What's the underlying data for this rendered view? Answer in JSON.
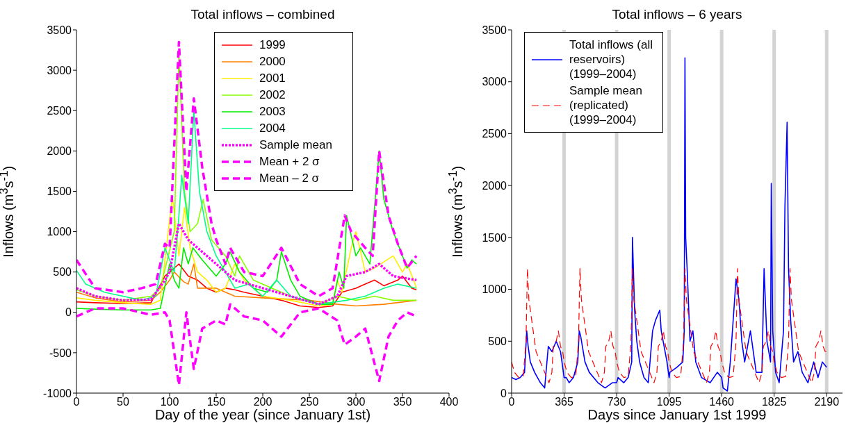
{
  "chart_data": [
    {
      "type": "line",
      "title": "Total inflows – combined",
      "xlabel": "Day of the year (since January 1st)",
      "ylabel": "Inflows (m$^{3}$s$^{-1}$)",
      "xlim": [
        0,
        400
      ],
      "xticks": [
        0,
        50,
        100,
        150,
        200,
        250,
        300,
        350,
        400
      ],
      "ylim": [
        -1000,
        3500
      ],
      "yticks": [
        -1000,
        -500,
        0,
        500,
        1000,
        1500,
        2000,
        2500,
        3000,
        3500
      ],
      "legend": "top right",
      "series": [
        {
          "name": "1999",
          "color": "#ff0000",
          "line_style": "solid",
          "x": [
            0,
            20,
            50,
            80,
            95,
            105,
            110,
            120,
            130,
            140,
            150,
            160,
            170,
            180,
            200,
            220,
            240,
            260,
            275,
            285,
            300,
            310,
            320,
            330,
            345,
            350,
            360,
            365
          ],
          "values": [
            130,
            120,
            110,
            120,
            450,
            550,
            600,
            450,
            400,
            300,
            250,
            300,
            280,
            250,
            200,
            150,
            80,
            60,
            80,
            250,
            300,
            350,
            400,
            330,
            400,
            450,
            300,
            280
          ]
        },
        {
          "name": "2000",
          "color": "#ff8000",
          "line_style": "solid",
          "x": [
            0,
            20,
            50,
            80,
            90,
            100,
            105,
            115,
            120,
            126,
            130,
            150,
            170,
            200,
            250,
            280,
            300,
            330,
            365
          ],
          "values": [
            250,
            180,
            130,
            150,
            250,
            400,
            500,
            380,
            350,
            600,
            300,
            300,
            200,
            180,
            150,
            100,
            80,
            100,
            150
          ]
        },
        {
          "name": "2001",
          "color": "#ffee00",
          "line_style": "solid",
          "x": [
            0,
            20,
            50,
            80,
            90,
            103,
            110,
            116,
            122,
            130,
            140,
            150,
            160,
            170,
            180,
            200,
            230,
            260,
            275,
            280,
            285,
            295,
            300,
            310,
            320,
            340,
            350,
            355,
            362,
            365
          ],
          "values": [
            180,
            150,
            120,
            100,
            150,
            1450,
            700,
            1300,
            800,
            500,
            400,
            250,
            300,
            600,
            400,
            200,
            150,
            80,
            100,
            400,
            250,
            800,
            1000,
            500,
            550,
            700,
            500,
            600,
            400,
            300
          ]
        },
        {
          "name": "2002",
          "color": "#88ff00",
          "line_style": "solid",
          "x": [
            0,
            20,
            50,
            80,
            90,
            105,
            110,
            116,
            122,
            130,
            136,
            145,
            160,
            170,
            175,
            190,
            210,
            230,
            260,
            280,
            300,
            320,
            340,
            365
          ],
          "values": [
            280,
            200,
            150,
            200,
            300,
            1000,
            3200,
            1500,
            1000,
            1100,
            1400,
            900,
            700,
            450,
            700,
            400,
            300,
            200,
            100,
            200,
            150,
            200,
            150,
            150
          ]
        },
        {
          "name": "2003",
          "color": "#00ee00",
          "line_style": "solid",
          "x": [
            0,
            20,
            50,
            80,
            90,
            100,
            105,
            110,
            115,
            120,
            125,
            135,
            150,
            160,
            165,
            175,
            190,
            205,
            215,
            220,
            230,
            240,
            260,
            275,
            282,
            287,
            290,
            300,
            305,
            315,
            325,
            330,
            340,
            350,
            355,
            360,
            365
          ],
          "values": [
            50,
            40,
            30,
            30,
            50,
            600,
            400,
            300,
            800,
            600,
            800,
            650,
            450,
            600,
            750,
            500,
            300,
            250,
            400,
            750,
            400,
            200,
            100,
            100,
            500,
            300,
            1200,
            700,
            800,
            600,
            2000,
            1400,
            1000,
            700,
            550,
            650,
            600
          ]
        },
        {
          "name": "2004",
          "color": "#00ff88",
          "line_style": "solid",
          "x": [
            0,
            10,
            30,
            50,
            70,
            85,
            95,
            105,
            110,
            113,
            120,
            126,
            132,
            140,
            150,
            160,
            170,
            185,
            200,
            215,
            230,
            260,
            290,
            310,
            330,
            345,
            365
          ],
          "values": [
            520,
            350,
            250,
            200,
            150,
            200,
            800,
            500,
            1200,
            1700,
            1100,
            2500,
            1500,
            1000,
            700,
            500,
            300,
            350,
            200,
            400,
            200,
            100,
            150,
            200,
            300,
            350,
            300
          ]
        },
        {
          "name": "Sample mean",
          "color": "#ff00ff",
          "line_style": "dotted",
          "x": [
            0,
            20,
            50,
            80,
            95,
            100,
            110,
            120,
            130,
            150,
            170,
            200,
            230,
            260,
            280,
            290,
            310,
            325,
            340,
            365
          ],
          "values": [
            300,
            200,
            150,
            160,
            400,
            500,
            1100,
            900,
            800,
            600,
            400,
            300,
            200,
            100,
            200,
            450,
            500,
            600,
            450,
            400
          ]
        },
        {
          "name": "Mean + 2 σ",
          "color": "#ff00ff",
          "line_style": "dashed",
          "x": [
            0,
            20,
            50,
            70,
            85,
            95,
            100,
            110,
            118,
            126,
            135,
            145,
            150,
            160,
            165,
            180,
            200,
            220,
            240,
            260,
            275,
            288,
            295,
            310,
            318,
            325,
            335,
            345,
            355,
            365
          ],
          "values": [
            650,
            300,
            250,
            300,
            350,
            850,
            800,
            3350,
            1500,
            2650,
            1800,
            1100,
            900,
            600,
            800,
            500,
            450,
            800,
            350,
            200,
            300,
            1200,
            1000,
            800,
            700,
            2000,
            1200,
            850,
            550,
            700
          ]
        },
        {
          "name": "Mean – 2 σ",
          "color": "#ff00ff",
          "line_style": "dashed",
          "x": [
            0,
            20,
            50,
            80,
            95,
            100,
            110,
            118,
            126,
            135,
            150,
            160,
            165,
            180,
            200,
            220,
            240,
            260,
            280,
            288,
            300,
            310,
            325,
            335,
            345,
            355,
            365
          ],
          "values": [
            -50,
            50,
            50,
            -30,
            0,
            -100,
            -900,
            0,
            -700,
            -200,
            -100,
            -150,
            100,
            -50,
            -100,
            -300,
            0,
            50,
            -100,
            -400,
            -300,
            -200,
            -850,
            -300,
            -100,
            0,
            -50
          ]
        }
      ]
    },
    {
      "type": "line",
      "title": "Total inflows – 6 years",
      "xlabel": "Days since January 1st 1999",
      "ylabel": "Inflows (m$^{3}$s$^{-1}$)",
      "xlim": [
        0,
        2300
      ],
      "xticks": [
        0,
        365,
        730,
        1095,
        1460,
        1825,
        2190
      ],
      "ylim": [
        0,
        3500
      ],
      "yticks": [
        0,
        500,
        1000,
        1500,
        2000,
        2500,
        3000,
        3500
      ],
      "legend": "top left",
      "ref_lines": [
        {
          "axis": "x",
          "value": 365,
          "color": "#d3d3d3"
        },
        {
          "axis": "x",
          "value": 730,
          "color": "#d3d3d3"
        },
        {
          "axis": "x",
          "value": 1095,
          "color": "#d3d3d3"
        },
        {
          "axis": "x",
          "value": 1460,
          "color": "#d3d3d3"
        },
        {
          "axis": "x",
          "value": 1825,
          "color": "#d3d3d3"
        },
        {
          "axis": "x",
          "value": 2190,
          "color": "#d3d3d3"
        }
      ],
      "series": [
        {
          "name": "Total inflows (all reservoirs) (1999–2004)",
          "color": "#0000ff",
          "line_style": "solid",
          "x": [
            0,
            30,
            60,
            90,
            105,
            115,
            130,
            160,
            200,
            230,
            255,
            280,
            310,
            340,
            365,
            380,
            400,
            430,
            460,
            470,
            480,
            510,
            540,
            600,
            650,
            700,
            730,
            740,
            780,
            810,
            835,
            840,
            855,
            870,
            890,
            920,
            950,
            980,
            1000,
            1030,
            1040,
            1080,
            1095,
            1100,
            1150,
            1190,
            1200,
            1205,
            1210,
            1220,
            1240,
            1260,
            1280,
            1320,
            1380,
            1430,
            1460,
            1470,
            1500,
            1520,
            1560,
            1580,
            1600,
            1620,
            1660,
            1700,
            1740,
            1755,
            1775,
            1800,
            1805,
            1815,
            1825,
            1835,
            1860,
            1890,
            1900,
            1915,
            1925,
            1940,
            1960,
            1990,
            2020,
            2060,
            2100,
            2130,
            2160,
            2190
          ],
          "values": [
            150,
            130,
            150,
            200,
            600,
            450,
            300,
            200,
            100,
            50,
            450,
            400,
            500,
            400,
            150,
            150,
            100,
            150,
            300,
            600,
            550,
            300,
            200,
            100,
            50,
            100,
            100,
            150,
            100,
            150,
            300,
            1500,
            800,
            500,
            300,
            150,
            100,
            600,
            700,
            800,
            600,
            300,
            150,
            200,
            250,
            300,
            600,
            3230,
            1500,
            1200,
            500,
            600,
            300,
            150,
            100,
            200,
            150,
            50,
            20,
            300,
            1100,
            900,
            500,
            300,
            600,
            200,
            200,
            1200,
            500,
            300,
            2020,
            600,
            400,
            200,
            100,
            600,
            1800,
            2610,
            1200,
            700,
            300,
            400,
            200,
            100,
            300,
            150,
            300,
            250
          ]
        },
        {
          "name": "Sample mean (replicated) (1999–2004)",
          "color": "#ff0000",
          "line_style": "dashed",
          "x": [
            0,
            20,
            50,
            80,
            95,
            100,
            110,
            120,
            130,
            150,
            170,
            200,
            230,
            260,
            280,
            290,
            310,
            325,
            340,
            355,
            365,
            385,
            415,
            445,
            460,
            465,
            475,
            485,
            495,
            515,
            535,
            565,
            595,
            625,
            645,
            655,
            675,
            690,
            705,
            720,
            730,
            750,
            780,
            810,
            825,
            830,
            840,
            850,
            860,
            880,
            900,
            930,
            960,
            990,
            1010,
            1020,
            1040,
            1055,
            1070,
            1085,
            1095,
            1115,
            1145,
            1175,
            1190,
            1195,
            1205,
            1215,
            1225,
            1245,
            1265,
            1295,
            1325,
            1355,
            1375,
            1385,
            1405,
            1420,
            1435,
            1450,
            1460,
            1480,
            1510,
            1540,
            1555,
            1560,
            1570,
            1580,
            1590,
            1610,
            1630,
            1660,
            1690,
            1720,
            1740,
            1750,
            1770,
            1785,
            1800,
            1815,
            1825,
            1845,
            1875,
            1905,
            1920,
            1925,
            1935,
            1945,
            1955,
            1975,
            1995,
            2025,
            2055,
            2085,
            2105,
            2115,
            2135,
            2150,
            2165,
            2180,
            2190
          ],
          "values": [
            300,
            200,
            150,
            160,
            400,
            500,
            1200,
            900,
            800,
            600,
            400,
            300,
            200,
            100,
            200,
            450,
            500,
            600,
            450,
            400,
            300,
            200,
            150,
            160,
            400,
            500,
            1200,
            900,
            800,
            600,
            400,
            300,
            200,
            100,
            200,
            450,
            500,
            600,
            450,
            400,
            300,
            200,
            150,
            160,
            400,
            500,
            1200,
            900,
            800,
            600,
            400,
            300,
            200,
            100,
            200,
            450,
            500,
            600,
            450,
            400,
            300,
            200,
            150,
            160,
            400,
            500,
            1200,
            900,
            800,
            600,
            400,
            300,
            200,
            100,
            200,
            450,
            500,
            600,
            450,
            400,
            300,
            200,
            150,
            160,
            400,
            500,
            1200,
            900,
            800,
            600,
            400,
            300,
            200,
            100,
            200,
            450,
            500,
            600,
            450,
            400,
            300,
            200,
            150,
            160,
            400,
            500,
            1200,
            900,
            800,
            600,
            400,
            300,
            200,
            100,
            200,
            450,
            500,
            600,
            450,
            400,
            400
          ]
        }
      ]
    }
  ]
}
